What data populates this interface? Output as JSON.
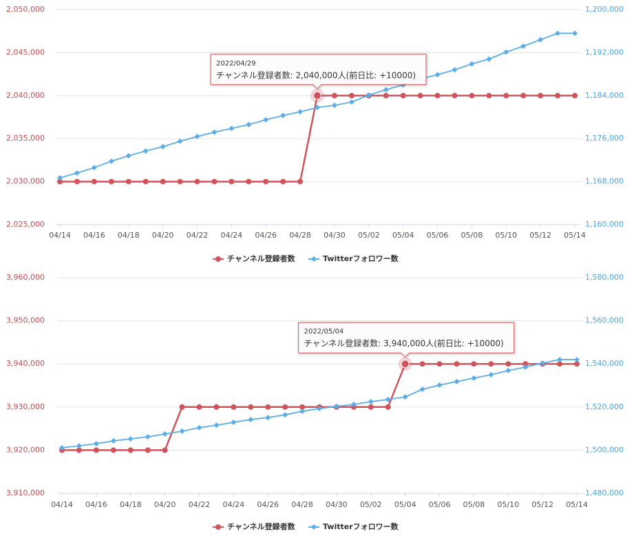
{
  "chart_data": [
    {
      "type": "line",
      "categories": [
        "04/14",
        null,
        "04/16",
        null,
        "04/18",
        null,
        "04/20",
        null,
        "04/22",
        null,
        "04/24",
        null,
        "04/26",
        null,
        "04/28",
        null,
        "04/30",
        null,
        "05/02",
        null,
        "05/04",
        null,
        "05/06",
        null,
        "05/08",
        null,
        "05/10",
        null,
        "05/12",
        null,
        "05/14"
      ],
      "series": [
        {
          "name": "チャンネル登録者数",
          "color": "#d0525a",
          "axis": "y",
          "values": [
            2030000,
            2030000,
            2030000,
            2030000,
            2030000,
            2030000,
            2030000,
            2030000,
            2030000,
            2030000,
            2030000,
            2030000,
            2030000,
            2030000,
            2030000,
            2040000,
            2040000,
            2040000,
            2040000,
            2040000,
            2040000,
            2040000,
            2040000,
            2040000,
            2040000,
            2040000,
            2040000,
            2040000,
            2040000,
            2040000,
            2040000
          ]
        },
        {
          "name": "Twitterフォロワー数",
          "color": "#5aade6",
          "axis": "y2",
          "values": [
            1168700,
            1169600,
            1170600,
            1171800,
            1172800,
            1173700,
            1174500,
            1175500,
            1176400,
            1177200,
            1177900,
            1178600,
            1179500,
            1180300,
            1181000,
            1181800,
            1182200,
            1182800,
            1184100,
            1185100,
            1186000,
            1187100,
            1187900,
            1188800,
            1189900,
            1190800,
            1192100,
            1193200,
            1194400,
            1195600,
            1195600
          ]
        }
      ],
      "ylim": [
        2025000,
        2050000
      ],
      "yticks": [
        {
          "value": 2025000,
          "label": "2,025,000"
        },
        {
          "value": 2030000,
          "label": "2,030,000"
        },
        {
          "value": 2035000,
          "label": "2,035,000"
        },
        {
          "value": 2040000,
          "label": "2,040,000"
        },
        {
          "value": 2045000,
          "label": "2,045,000"
        },
        {
          "value": 2050000,
          "label": "2,050,000"
        }
      ],
      "y2lim": [
        1160000,
        1200000
      ],
      "y2ticks": [
        {
          "value": 1160000,
          "label": "1,160,000"
        },
        {
          "value": 1168000,
          "label": "1,168,000"
        },
        {
          "value": 1176000,
          "label": "1,176,000"
        },
        {
          "value": 1184000,
          "label": "1,184,000"
        },
        {
          "value": 1192000,
          "label": "1,192,000"
        },
        {
          "value": 1200000,
          "label": "1,200,000"
        }
      ],
      "grid": true,
      "legend": "bottom",
      "tooltip": {
        "date": "2022/04/29",
        "text": "チャンネル登録者数: 2,040,000人(前日比: +10000)"
      }
    },
    {
      "type": "line",
      "categories": [
        "04/14",
        null,
        "04/16",
        null,
        "04/18",
        null,
        "04/20",
        null,
        "04/22",
        null,
        "04/24",
        null,
        "04/26",
        null,
        "04/28",
        null,
        "04/30",
        null,
        "05/02",
        null,
        "05/04",
        null,
        "05/06",
        null,
        "05/08",
        null,
        "05/10",
        null,
        "05/12",
        null,
        "05/14"
      ],
      "series": [
        {
          "name": "チャンネル登録者数",
          "color": "#d0525a",
          "axis": "y",
          "values": [
            3920000,
            3920000,
            3920000,
            3920000,
            3920000,
            3920000,
            3920000,
            3930000,
            3930000,
            3930000,
            3930000,
            3930000,
            3930000,
            3930000,
            3930000,
            3930000,
            3930000,
            3930000,
            3930000,
            3930000,
            3940000,
            3940000,
            3940000,
            3940000,
            3940000,
            3940000,
            3940000,
            3940000,
            3940000,
            3940000,
            3940000
          ]
        },
        {
          "name": "Twitterフォロワー数",
          "color": "#5aade6",
          "axis": "y2",
          "values": [
            1501100,
            1502000,
            1503000,
            1504300,
            1505200,
            1506200,
            1507500,
            1508800,
            1510400,
            1511600,
            1512900,
            1514200,
            1515100,
            1516400,
            1518000,
            1519300,
            1520300,
            1521200,
            1522500,
            1523500,
            1524700,
            1528200,
            1530200,
            1531800,
            1533400,
            1535000,
            1536900,
            1538500,
            1540400,
            1542000,
            1542000
          ]
        }
      ],
      "ylim": [
        3910000,
        3960000
      ],
      "yticks": [
        {
          "value": 3910000,
          "label": "3,910,000"
        },
        {
          "value": 3920000,
          "label": "3,920,000"
        },
        {
          "value": 3930000,
          "label": "3,930,000"
        },
        {
          "value": 3940000,
          "label": "3,940,000"
        },
        {
          "value": 3950000,
          "label": "3,950,000"
        },
        {
          "value": 3960000,
          "label": "3,960,000"
        }
      ],
      "y2lim": [
        1480000,
        1580000
      ],
      "y2ticks": [
        {
          "value": 1480000,
          "label": "1,480,000"
        },
        {
          "value": 1500000,
          "label": "1,500,000"
        },
        {
          "value": 1520000,
          "label": "1,520,000"
        },
        {
          "value": 1540000,
          "label": "1,540,000"
        },
        {
          "value": 1560000,
          "label": "1,560,000"
        },
        {
          "value": 1580000,
          "label": "1,580,000"
        }
      ],
      "grid": true,
      "legend": "bottom",
      "tooltip": {
        "date": "2022/05/04",
        "text": "チャンネル登録者数: 3,940,000人(前日比: +10000)"
      }
    }
  ]
}
